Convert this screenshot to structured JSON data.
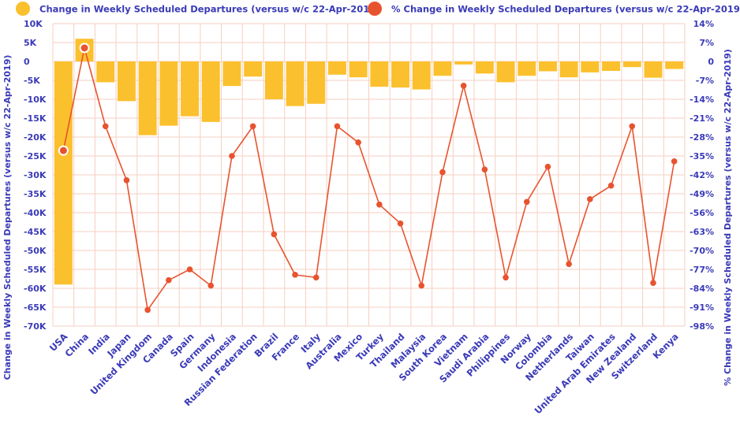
{
  "chart_data": {
    "type": "bar",
    "categories": [
      "USA",
      "China",
      "India",
      "Japan",
      "United Kingdom",
      "Canada",
      "Spain",
      "Germany",
      "Indonesia",
      "Russian Federation",
      "Brazil",
      "France",
      "Italy",
      "Australia",
      "Mexico",
      "Turkey",
      "Thailand",
      "Malaysia",
      "South Korea",
      "Vietnam",
      "Saudi Arabia",
      "Philippines",
      "Norway",
      "Colombia",
      "Netherlands",
      "Taiwan",
      "United Arab Emirates",
      "New Zealand",
      "Switzerland",
      "Kenya"
    ],
    "series": [
      {
        "name": "Change in Weekly Scheduled Departures (versus w/c 22-Apr-2019)",
        "type": "bar",
        "axis": "left",
        "color": "#fbc02d",
        "values": [
          -59000,
          6000,
          -5500,
          -10500,
          -19500,
          -17000,
          -14500,
          -16000,
          -6500,
          -4000,
          -10000,
          -11800,
          -11200,
          -3500,
          -4200,
          -6700,
          -6900,
          -7400,
          -3800,
          -800,
          -3200,
          -5500,
          -3800,
          -2600,
          -4200,
          -2900,
          -2500,
          -1500,
          -4300,
          -2000
        ]
      },
      {
        "name": "% Change in Weekly Scheduled Departures (versus w/c 22-Apr-2019)",
        "type": "line",
        "axis": "right",
        "color": "#e8532f",
        "values": [
          -33,
          5,
          -24,
          -44,
          -92,
          -81,
          -77,
          -83,
          -35,
          -24,
          -64,
          -79,
          -80,
          -24,
          -30,
          -53,
          -60,
          -83,
          -41,
          -9,
          -40,
          -80,
          -52,
          -39,
          -75,
          -51,
          -46,
          -24,
          -82,
          -37
        ]
      }
    ],
    "y_left": {
      "label": "Change in Weekly Scheduled Departures (versus w/c 22-Apr-2019)",
      "range": [
        -70000,
        10000
      ],
      "ticks": [
        10000,
        5000,
        0,
        -5000,
        -10000,
        -15000,
        -20000,
        -25000,
        -30000,
        -35000,
        -40000,
        -45000,
        -50000,
        -55000,
        -60000,
        -65000,
        -70000
      ],
      "tick_labels": [
        "10K",
        "5K",
        "0",
        "-5K",
        "-10K",
        "-15K",
        "-20K",
        "-25K",
        "-30K",
        "-35K",
        "-40K",
        "-45K",
        "-50K",
        "-55K",
        "-60K",
        "-65K",
        "-70K"
      ]
    },
    "y_right": {
      "label": "% Change in Weekly Scheduled Departures (versus w/c 22-Apr-2019)",
      "range": [
        -98,
        14
      ],
      "ticks": [
        14,
        7,
        0,
        -7,
        -14,
        -21,
        -28,
        -35,
        -42,
        -49,
        -56,
        -63,
        -70,
        -77,
        -84,
        -91,
        -98
      ],
      "tick_labels": [
        "14%",
        "7%",
        "0",
        "-7%",
        "-14%",
        "-21%",
        "-28%",
        "-35%",
        "-42%",
        "-49%",
        "-56%",
        "-63%",
        "-70%",
        "-77%",
        "-84%",
        "-91%",
        "-98%"
      ]
    },
    "highlighted_points": [
      0,
      1
    ],
    "grid": true,
    "legend_position": "top"
  }
}
